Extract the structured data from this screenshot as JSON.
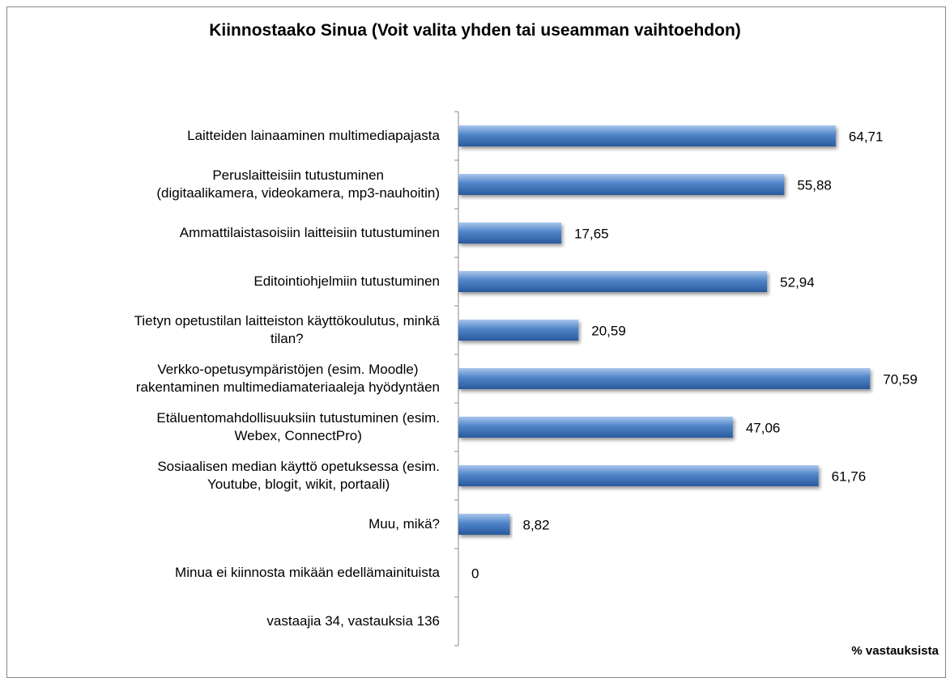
{
  "chart_data": {
    "type": "bar",
    "orientation": "horizontal",
    "title": "Kiinnostaako Sinua (Voit valita yhden tai useamman vaihtoehdon)",
    "x_label": "% vastauksista",
    "categories": [
      "Laitteiden lainaaminen multimediapajasta",
      "Peruslaitteisiin tutustuminen\n(digitaalikamera, videokamera, mp3-nauhoitin)",
      "Ammattilaistasoisiin laitteisiin tutustuminen",
      "Editointiohjelmiin tutustuminen",
      "Tietyn opetustilan laitteiston käyttökoulutus, minkä\ntilan?",
      "Verkko-opetusympäristöjen (esim. Moodle)\nrakentaminen multimediamateriaaleja hyödyntäen",
      "Etäluentomahdollisuuksiin tutustuminen (esim.\nWebex, ConnectPro)",
      "Sosiaalisen median käyttö opetuksessa (esim.\nYoutube, blogit, wikit, portaali)",
      "Muu, mikä?",
      "Minua ei kiinnosta mikään edellämainituista",
      "vastaajia 34, vastauksia 136"
    ],
    "values": [
      64.71,
      55.88,
      17.65,
      52.94,
      20.59,
      70.59,
      47.06,
      61.76,
      8.82,
      0,
      null
    ],
    "value_labels": [
      "64,71",
      "55,88",
      "17,65",
      "52,94",
      "20,59",
      "70,59",
      "47,06",
      "61,76",
      "8,82",
      "0",
      null
    ],
    "color": "#4a7ebf",
    "xlim": [
      0,
      80
    ]
  }
}
